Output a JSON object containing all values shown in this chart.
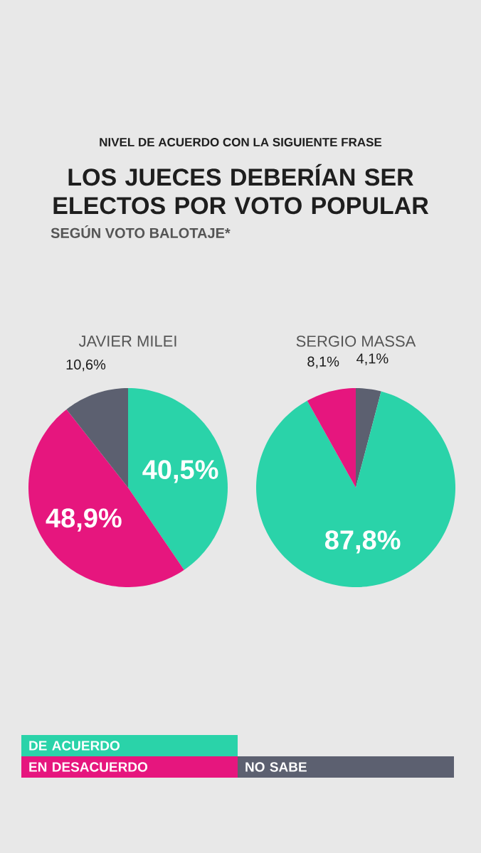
{
  "chart_data": [
    {
      "type": "other",
      "title": "LOS JUECES DEBERÍAN SER ELECTOS POR VOTO POPULAR",
      "subtitle": "SEGÚN VOTO BALOTAJE*",
      "annotations": [
        "NIVEL DE ACUERDO CON LA SIGUIENTE FRASE"
      ]
    },
    {
      "type": "pie",
      "title": "JAVIER MILEI",
      "categories": [
        "DE ACUERDO",
        "EN DESACUERDO",
        "NO SABE"
      ],
      "values": [
        40.5,
        48.9,
        10.6
      ],
      "value_labels": [
        "40,5%",
        "48,9%",
        "10,6%"
      ],
      "colors": [
        "#2ad3a9",
        "#e6167e",
        "#5c6070"
      ],
      "legend": "bottom"
    },
    {
      "type": "pie",
      "title": "SERGIO MASSA",
      "categories": [
        null,
        null,
        null
      ],
      "values": [
        4.1,
        87.8,
        8.1
      ],
      "value_labels": [
        "4,1%",
        "87,8%",
        "8,1%"
      ],
      "colors": [
        "#5c6070",
        "#2ad3a9",
        "#e6167e"
      ]
    }
  ]
}
